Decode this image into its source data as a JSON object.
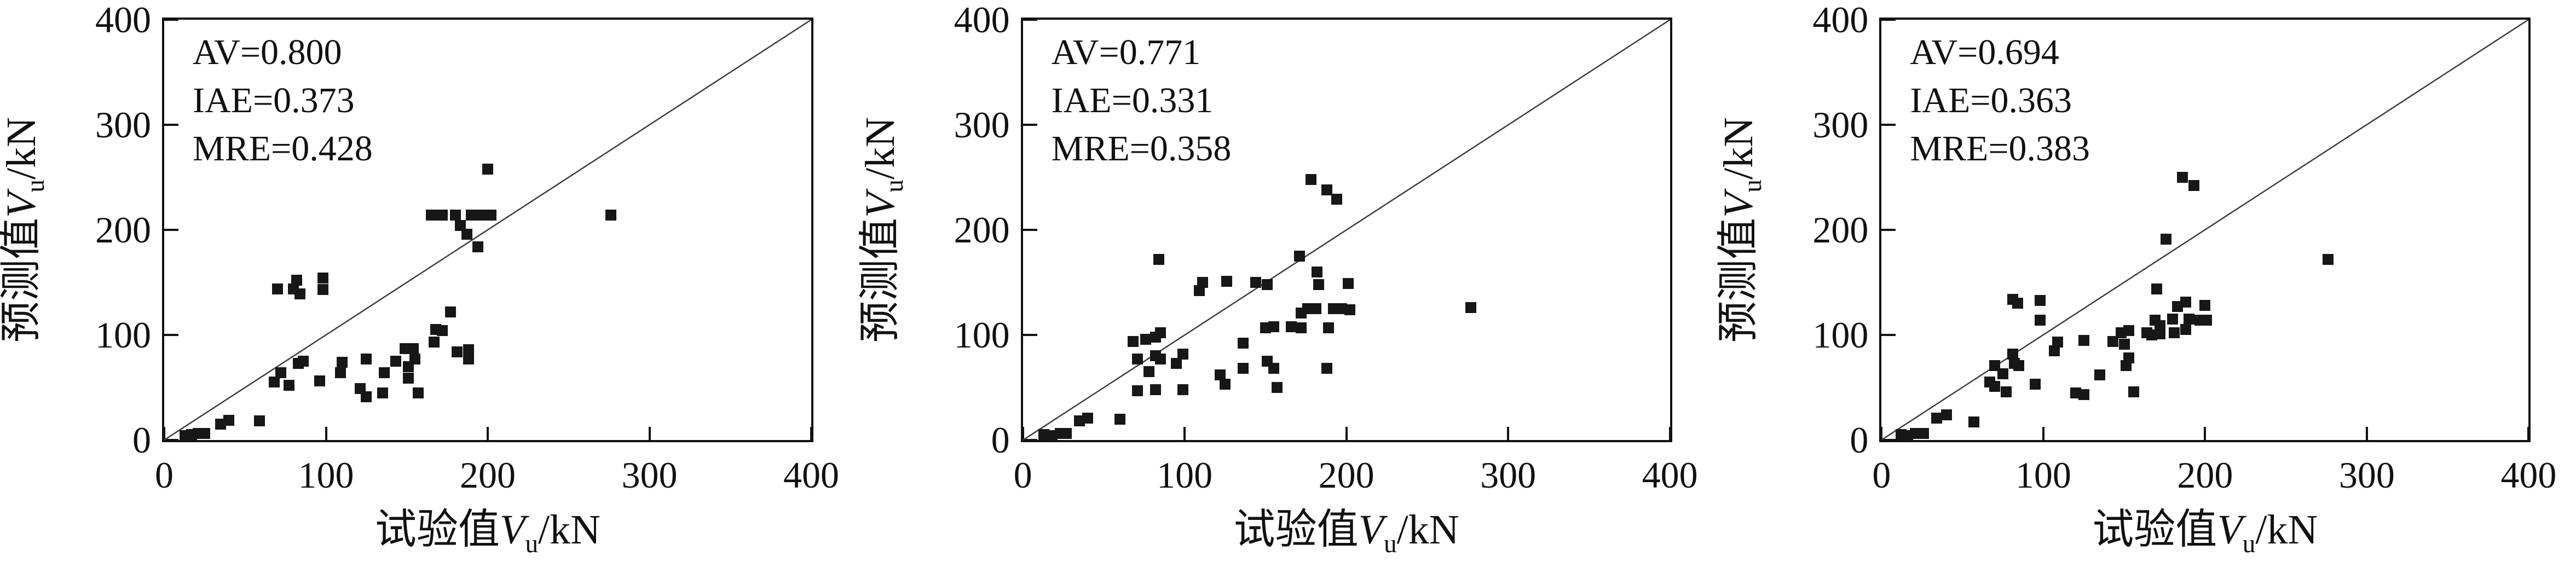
{
  "figure": {
    "background": "#ffffff",
    "text_color": "#111111",
    "marker_color": "#171717",
    "frame_color": "#111111",
    "reference_line_color": "#3c3c3c"
  },
  "labels": {
    "x": {
      "prefix": "试验值",
      "symbol": "V",
      "sub": "u",
      "unit": "/kN"
    },
    "y": {
      "prefix": "预测值",
      "symbol": "V",
      "sub": "u",
      "unit": "/kN"
    }
  },
  "chart_data": [
    {
      "type": "scatter",
      "title": "",
      "xlabel": "试验值Vu/kN",
      "ylabel": "预测值Vu/kN",
      "xlim": [
        0,
        400
      ],
      "ylim": [
        0,
        400
      ],
      "xticks": [
        0,
        100,
        200,
        300,
        400
      ],
      "yticks": [
        0,
        100,
        200,
        300,
        400
      ],
      "grid": false,
      "legend": "none",
      "annotations": [
        "AV=0.800",
        "IAE=0.373",
        "MRE=0.428"
      ],
      "reference_line": {
        "type": "y=x",
        "from": [
          0,
          0
        ],
        "to": [
          400,
          400
        ]
      },
      "points": [
        [
          13,
          4
        ],
        [
          17,
          5
        ],
        [
          21,
          6
        ],
        [
          25,
          6
        ],
        [
          35,
          15
        ],
        [
          40,
          19
        ],
        [
          59,
          18
        ],
        [
          70,
          144
        ],
        [
          80,
          144
        ],
        [
          82,
          152
        ],
        [
          84,
          139
        ],
        [
          98,
          154
        ],
        [
          98,
          143
        ],
        [
          68,
          55
        ],
        [
          72,
          64
        ],
        [
          77,
          52
        ],
        [
          83,
          73
        ],
        [
          86,
          75
        ],
        [
          96,
          56
        ],
        [
          109,
          64
        ],
        [
          110,
          74
        ],
        [
          121,
          49
        ],
        [
          125,
          41
        ],
        [
          125,
          77
        ],
        [
          135,
          45
        ],
        [
          136,
          64
        ],
        [
          143,
          75
        ],
        [
          149,
          87
        ],
        [
          154,
          87
        ],
        [
          151,
          70
        ],
        [
          151,
          59
        ],
        [
          155,
          77
        ],
        [
          157,
          45
        ],
        [
          167,
          93
        ],
        [
          168,
          105
        ],
        [
          172,
          104
        ],
        [
          177,
          122
        ],
        [
          181,
          84
        ],
        [
          188,
          86
        ],
        [
          188,
          77
        ],
        [
          165,
          214
        ],
        [
          172,
          214
        ],
        [
          180,
          214
        ],
        [
          190,
          214
        ],
        [
          196,
          214
        ],
        [
          202,
          214
        ],
        [
          183,
          204
        ],
        [
          187,
          196
        ],
        [
          194,
          184
        ],
        [
          200,
          258
        ],
        [
          276,
          214
        ]
      ]
    },
    {
      "type": "scatter",
      "title": "",
      "xlabel": "试验值Vu/kN",
      "ylabel": "预测值Vu/kN",
      "xlim": [
        0,
        400
      ],
      "ylim": [
        0,
        400
      ],
      "xticks": [
        0,
        100,
        200,
        300,
        400
      ],
      "yticks": [
        0,
        100,
        200,
        300,
        400
      ],
      "grid": false,
      "legend": "none",
      "annotations": [
        "AV=0.771",
        "IAE=0.331",
        "MRE=0.358"
      ],
      "reference_line": {
        "type": "y=x",
        "from": [
          0,
          0
        ],
        "to": [
          400,
          400
        ]
      },
      "points": [
        [
          13,
          5
        ],
        [
          18,
          4
        ],
        [
          23,
          6
        ],
        [
          27,
          6
        ],
        [
          35,
          18
        ],
        [
          40,
          21
        ],
        [
          60,
          20
        ],
        [
          68,
          94
        ],
        [
          76,
          96
        ],
        [
          82,
          98
        ],
        [
          85,
          102
        ],
        [
          71,
          77
        ],
        [
          82,
          80
        ],
        [
          85,
          77
        ],
        [
          78,
          65
        ],
        [
          99,
          82
        ],
        [
          95,
          73
        ],
        [
          71,
          47
        ],
        [
          82,
          48
        ],
        [
          99,
          48
        ],
        [
          84,
          172
        ],
        [
          109,
          142
        ],
        [
          111,
          150
        ],
        [
          126,
          151
        ],
        [
          122,
          62
        ],
        [
          125,
          53
        ],
        [
          136,
          68
        ],
        [
          136,
          92
        ],
        [
          144,
          150
        ],
        [
          151,
          148
        ],
        [
          150,
          107
        ],
        [
          155,
          108
        ],
        [
          166,
          108
        ],
        [
          172,
          107
        ],
        [
          189,
          107
        ],
        [
          151,
          75
        ],
        [
          155,
          68
        ],
        [
          157,
          50
        ],
        [
          188,
          68
        ],
        [
          172,
          121
        ],
        [
          176,
          125
        ],
        [
          181,
          125
        ],
        [
          192,
          125
        ],
        [
          197,
          125
        ],
        [
          202,
          124
        ],
        [
          182,
          160
        ],
        [
          183,
          148
        ],
        [
          201,
          149
        ],
        [
          171,
          175
        ],
        [
          178,
          248
        ],
        [
          188,
          238
        ],
        [
          194,
          229
        ],
        [
          277,
          126
        ]
      ]
    },
    {
      "type": "scatter",
      "title": "",
      "xlabel": "试验值Vu/kN",
      "ylabel": "预测值Vu/kN",
      "xlim": [
        0,
        400
      ],
      "ylim": [
        0,
        400
      ],
      "xticks": [
        0,
        100,
        200,
        300,
        400
      ],
      "yticks": [
        0,
        100,
        200,
        300,
        400
      ],
      "grid": false,
      "legend": "none",
      "annotations": [
        "AV=0.694",
        "IAE=0.363",
        "MRE=0.383"
      ],
      "reference_line": {
        "type": "y=x",
        "from": [
          0,
          0
        ],
        "to": [
          400,
          400
        ]
      },
      "points": [
        [
          12,
          5
        ],
        [
          16,
          4
        ],
        [
          21,
          6
        ],
        [
          26,
          6
        ],
        [
          34,
          21
        ],
        [
          40,
          24
        ],
        [
          57,
          17
        ],
        [
          67,
          55
        ],
        [
          70,
          51
        ],
        [
          70,
          71
        ],
        [
          75,
          63
        ],
        [
          77,
          46
        ],
        [
          81,
          82
        ],
        [
          82,
          73
        ],
        [
          85,
          71
        ],
        [
          95,
          53
        ],
        [
          81,
          134
        ],
        [
          84,
          130
        ],
        [
          98,
          133
        ],
        [
          98,
          114
        ],
        [
          107,
          85
        ],
        [
          109,
          93
        ],
        [
          120,
          45
        ],
        [
          125,
          43
        ],
        [
          125,
          95
        ],
        [
          135,
          62
        ],
        [
          143,
          94
        ],
        [
          148,
          102
        ],
        [
          153,
          104
        ],
        [
          150,
          91
        ],
        [
          153,
          78
        ],
        [
          151,
          71
        ],
        [
          156,
          46
        ],
        [
          164,
          102
        ],
        [
          167,
          100
        ],
        [
          172,
          101
        ],
        [
          181,
          102
        ],
        [
          188,
          105
        ],
        [
          169,
          114
        ],
        [
          172,
          109
        ],
        [
          180,
          115
        ],
        [
          190,
          115
        ],
        [
          197,
          114
        ],
        [
          201,
          114
        ],
        [
          183,
          127
        ],
        [
          188,
          131
        ],
        [
          200,
          128
        ],
        [
          170,
          144
        ],
        [
          176,
          191
        ],
        [
          186,
          250
        ],
        [
          193,
          242
        ],
        [
          276,
          172
        ]
      ]
    }
  ]
}
